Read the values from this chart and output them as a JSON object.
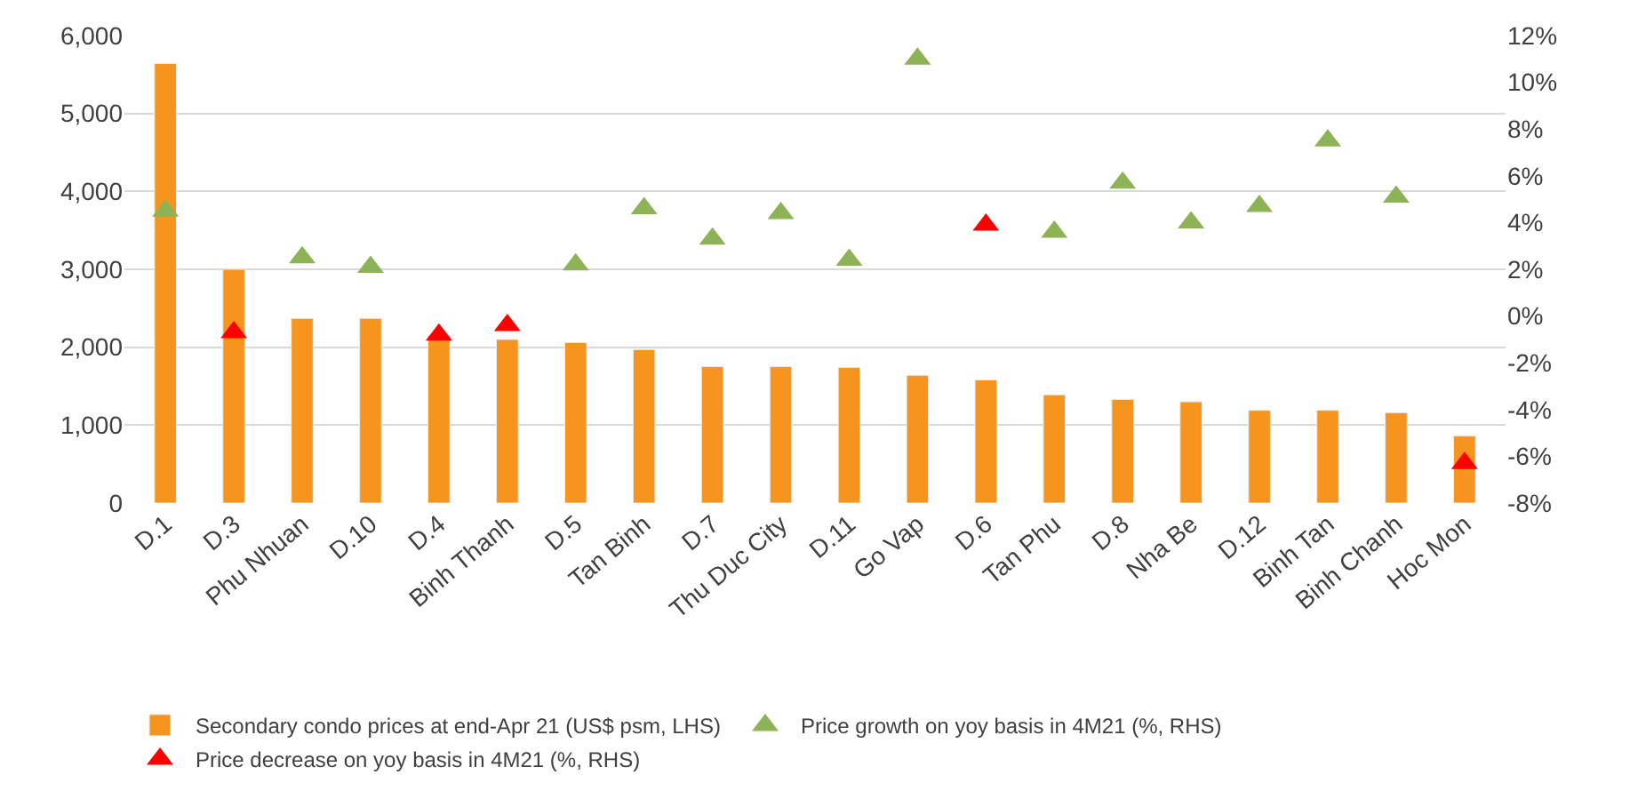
{
  "chart_data": {
    "type": "bar",
    "categories": [
      "D.1",
      "D.3",
      "Phu Nhuan",
      "D.10",
      "D.4",
      "Binh Thanh",
      "D.5",
      "Tan Binh",
      "D.7",
      "Thu Duc City",
      "D.11",
      "Go Vap",
      "D.6",
      "Tan Phu",
      "D.8",
      "Nha Be",
      "D.12",
      "Binh Tan",
      "Binh Chanh",
      "Hoc Mon"
    ],
    "series": [
      {
        "name": "Secondary condo prices at end-Apr 21 (US$ psm, LHS)",
        "color": "#f7941d",
        "values": [
          5640,
          3000,
          2370,
          2370,
          2150,
          2100,
          2060,
          1970,
          1750,
          1750,
          1740,
          1640,
          1580,
          1390,
          1330,
          1300,
          1190,
          1190,
          1160,
          860
        ]
      },
      {
        "name": "Price growth on yoy basis in 4M21 (%, RHS)",
        "color": "#8db356",
        "type": "scatter",
        "axis": "y2",
        "marker": "triangle",
        "values": [
          4.5,
          null,
          2.5,
          2.1,
          null,
          null,
          2.2,
          4.6,
          3.3,
          4.4,
          2.4,
          11.0,
          null,
          3.6,
          5.7,
          4.0,
          4.7,
          7.5,
          5.1,
          null
        ]
      },
      {
        "name": "Price decrease on yoy basis in 4M21 (%, RHS)",
        "color": "#ff0000",
        "type": "scatter",
        "axis": "y2",
        "marker": "triangle",
        "values": [
          null,
          -0.7,
          null,
          null,
          -0.8,
          -0.4,
          null,
          null,
          null,
          null,
          null,
          null,
          3.9,
          null,
          null,
          null,
          null,
          null,
          null,
          -6.3
        ]
      }
    ],
    "ylim": [
      0,
      6000
    ],
    "yticks": [
      0,
      {
        "value": 1000,
        "label": "1,000"
      },
      {
        "value": 2000,
        "label": "2,000"
      },
      {
        "value": 3000,
        "label": "3,000"
      },
      {
        "value": 4000,
        "label": "4,000"
      },
      {
        "value": 5000,
        "label": "5,000"
      },
      {
        "value": 6000,
        "label": "6,000"
      }
    ],
    "y2lim": [
      -8,
      12
    ],
    "y2ticks": [
      {
        "value": -8,
        "label": "-8%"
      },
      {
        "value": -6,
        "label": "-6%"
      },
      {
        "value": -4,
        "label": "-4%"
      },
      {
        "value": -2,
        "label": "-2%"
      },
      {
        "value": 0,
        "label": "0%"
      },
      {
        "value": 2,
        "label": "2%"
      },
      {
        "value": 4,
        "label": "4%"
      },
      {
        "value": 6,
        "label": "6%"
      },
      {
        "value": 8,
        "label": "8%"
      },
      {
        "value": 10,
        "label": "10%"
      },
      {
        "value": 12,
        "label": "12%"
      }
    ],
    "grid": "y",
    "legend": "bottom"
  }
}
